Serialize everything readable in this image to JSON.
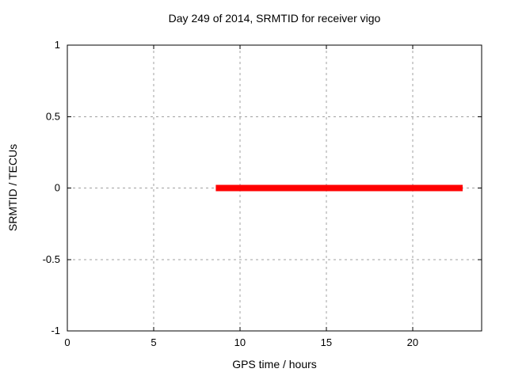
{
  "figure": {
    "background": "#ffffff"
  },
  "chart_data": {
    "type": "line",
    "title": "Day 249 of 2014, SRMTID for receiver vigo",
    "xlabel": "GPS time / hours",
    "ylabel": "SRMTID / TECUs",
    "xlim": [
      0,
      24
    ],
    "ylim": [
      -1,
      1
    ],
    "xticks": [
      0,
      5,
      10,
      15,
      20
    ],
    "yticks": [
      -1,
      -0.5,
      0,
      0.5,
      1
    ],
    "grid": true,
    "grid_color": "#a0a0a0",
    "border_color": "#000000",
    "legend_position": "none",
    "series": [
      {
        "name": "SRMTID",
        "color": "#ff0000",
        "linewidth": 8,
        "points": [
          {
            "x": 8.6,
            "y": 0
          },
          {
            "x": 22.9,
            "y": 0
          }
        ]
      }
    ]
  }
}
